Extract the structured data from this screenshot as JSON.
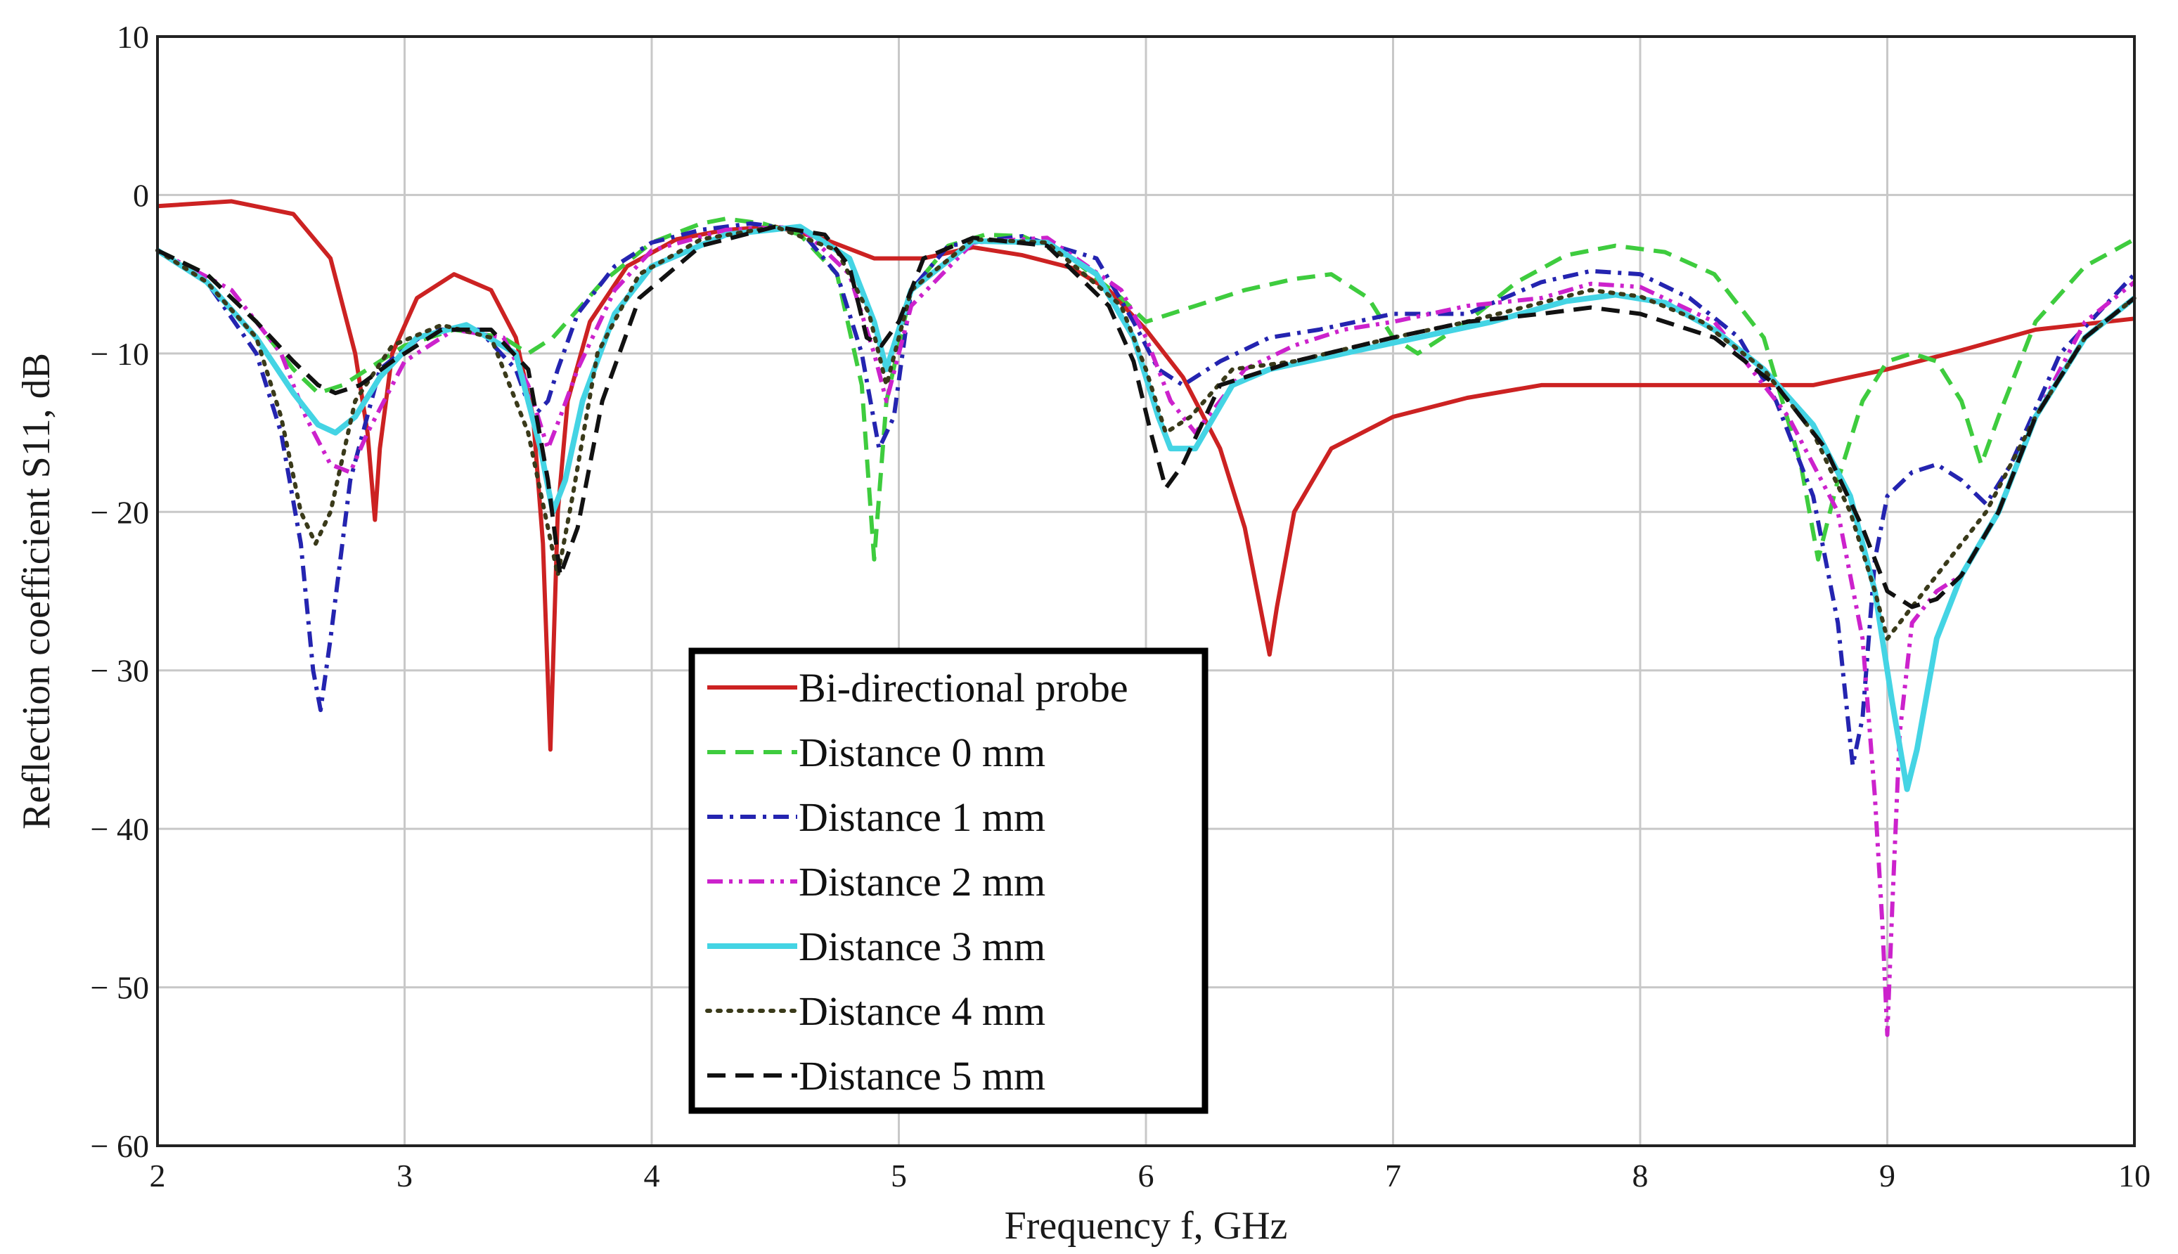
{
  "chart_data": {
    "type": "line",
    "xlabel": "Frequency f, GHz",
    "ylabel": "Reflection coefficient S11, dB",
    "xlim": [
      2,
      10
    ],
    "ylim": [
      -60,
      10
    ],
    "grid": true,
    "legend_position": "lower-center",
    "x_ticks": [
      2,
      3,
      4,
      5,
      6,
      7,
      8,
      9,
      10
    ],
    "x_tick_labels": [
      "2",
      "3",
      "4",
      "5",
      "6",
      "7",
      "8",
      "9",
      "10"
    ],
    "y_ticks": [
      10,
      0,
      -10,
      -20,
      -30,
      -40,
      -50,
      -60
    ],
    "y_tick_labels": [
      "10",
      "0",
      "− 10",
      "− 20",
      "− 30",
      "− 40",
      "− 50",
      "− 60"
    ],
    "series": [
      {
        "name": "Bi-directional probe",
        "color": "#cc2222",
        "style": "solid",
        "x": [
          2.0,
          2.3,
          2.55,
          2.7,
          2.8,
          2.85,
          2.88,
          2.9,
          2.95,
          3.05,
          3.2,
          3.35,
          3.45,
          3.52,
          3.56,
          3.59,
          3.6,
          3.62,
          3.66,
          3.75,
          3.9,
          4.1,
          4.3,
          4.5,
          4.7,
          4.9,
          5.1,
          5.3,
          5.5,
          5.7,
          5.85,
          6.0,
          6.15,
          6.3,
          6.4,
          6.45,
          6.5,
          6.53,
          6.6,
          6.75,
          7.0,
          7.3,
          7.6,
          8.0,
          8.4,
          8.7,
          9.0,
          9.3,
          9.6,
          10.0
        ],
        "y": [
          -0.7,
          -0.4,
          -1.2,
          -4,
          -10,
          -15,
          -20.5,
          -16,
          -10,
          -6.5,
          -5,
          -6,
          -9,
          -14,
          -22,
          -35,
          -30,
          -20,
          -13,
          -8,
          -4.5,
          -2.8,
          -2.2,
          -2.0,
          -2.8,
          -4.0,
          -4.0,
          -3.3,
          -3.8,
          -4.6,
          -6.0,
          -8.5,
          -11.5,
          -16,
          -21,
          -25,
          -29,
          -26,
          -20,
          -16,
          -14,
          -12.8,
          -12,
          -12.0,
          -12.0,
          -12.0,
          -11,
          -9.8,
          -8.5,
          -7.8
        ]
      },
      {
        "name": "Distance 0 mm",
        "color": "#3ecc3e",
        "style": "dashed",
        "x": [
          2.0,
          2.2,
          2.4,
          2.55,
          2.65,
          2.75,
          2.85,
          3.0,
          3.2,
          3.4,
          3.5,
          3.6,
          3.8,
          4.0,
          4.2,
          4.3,
          4.45,
          4.6,
          4.75,
          4.85,
          4.9,
          4.95,
          5.05,
          5.2,
          5.35,
          5.5,
          5.7,
          5.9,
          6.0,
          6.2,
          6.4,
          6.6,
          6.75,
          6.9,
          7.0,
          7.1,
          7.3,
          7.5,
          7.7,
          7.9,
          8.1,
          8.3,
          8.5,
          8.65,
          8.72,
          8.8,
          8.9,
          9.0,
          9.1,
          9.2,
          9.3,
          9.38,
          9.45,
          9.6,
          9.8,
          10.0
        ],
        "y": [
          -3.5,
          -5,
          -8,
          -11,
          -12.5,
          -12,
          -11,
          -9.5,
          -8.5,
          -9,
          -10,
          -9,
          -5.5,
          -3,
          -1.8,
          -1.5,
          -1.8,
          -2.5,
          -5,
          -12,
          -23,
          -13,
          -6,
          -3.2,
          -2.5,
          -2.6,
          -4,
          -6.5,
          -8,
          -7,
          -6,
          -5.3,
          -5.0,
          -6.5,
          -9,
          -10,
          -8,
          -5.5,
          -3.8,
          -3.2,
          -3.6,
          -5,
          -9,
          -17,
          -23,
          -18,
          -13,
          -10.5,
          -10,
          -10.5,
          -13,
          -17,
          -14,
          -8,
          -4.5,
          -2.8
        ]
      },
      {
        "name": "Distance 1 mm",
        "color": "#2424b0",
        "style": "dashdot",
        "x": [
          2.0,
          2.2,
          2.4,
          2.5,
          2.58,
          2.63,
          2.66,
          2.7,
          2.78,
          2.9,
          3.1,
          3.3,
          3.45,
          3.52,
          3.58,
          3.62,
          3.7,
          3.85,
          4.0,
          4.2,
          4.4,
          4.6,
          4.75,
          4.85,
          4.92,
          4.98,
          5.05,
          5.2,
          5.5,
          5.8,
          5.95,
          6.05,
          6.15,
          6.3,
          6.5,
          6.7,
          7.0,
          7.3,
          7.6,
          7.8,
          8.0,
          8.2,
          8.4,
          8.55,
          8.7,
          8.8,
          8.86,
          8.9,
          8.95,
          9.0,
          9.1,
          9.2,
          9.3,
          9.4,
          9.5,
          9.7,
          10.0
        ],
        "y": [
          -3.5,
          -5.5,
          -10,
          -15,
          -22,
          -30,
          -32.5,
          -28,
          -18,
          -11,
          -8.5,
          -8.5,
          -11,
          -14,
          -13,
          -11,
          -7.5,
          -4.5,
          -3,
          -2.2,
          -1.8,
          -2.2,
          -5,
          -10,
          -16,
          -14,
          -6,
          -3.2,
          -2.6,
          -4,
          -8,
          -11,
          -12,
          -10.5,
          -9,
          -8.5,
          -7.5,
          -7.5,
          -5.5,
          -4.8,
          -5.0,
          -6.5,
          -9,
          -13,
          -19,
          -27,
          -36,
          -33,
          -23,
          -19,
          -17.5,
          -17,
          -18,
          -19.5,
          -17,
          -10,
          -5
        ]
      },
      {
        "name": "Distance 2 mm",
        "color": "#cc22cc",
        "style": "dashdotdot",
        "x": [
          2.0,
          2.3,
          2.5,
          2.6,
          2.7,
          2.78,
          2.85,
          3.0,
          3.2,
          3.4,
          3.5,
          3.58,
          3.63,
          3.7,
          3.85,
          4.0,
          4.3,
          4.6,
          4.8,
          4.9,
          4.95,
          5.05,
          5.3,
          5.6,
          5.9,
          6.0,
          6.1,
          6.2,
          6.4,
          6.6,
          6.8,
          7.0,
          7.3,
          7.6,
          7.8,
          8.0,
          8.3,
          8.6,
          8.8,
          8.9,
          8.95,
          8.98,
          9.0,
          9.02,
          9.05,
          9.1,
          9.2,
          9.3,
          9.45,
          9.6,
          9.8,
          10.0
        ],
        "y": [
          -3.5,
          -6,
          -10,
          -14,
          -17,
          -17.5,
          -15,
          -10.5,
          -8.5,
          -9,
          -12,
          -16,
          -14,
          -11,
          -6,
          -3.5,
          -2.2,
          -2.0,
          -5,
          -10,
          -13,
          -7,
          -3,
          -2.7,
          -6,
          -9,
          -13,
          -15,
          -11,
          -9.5,
          -8.5,
          -8,
          -7,
          -6.5,
          -5.6,
          -5.8,
          -8,
          -14,
          -20,
          -28,
          -38,
          -46,
          -53,
          -45,
          -34,
          -27,
          -25,
          -24,
          -20,
          -14,
          -8,
          -5.5
        ]
      },
      {
        "name": "Distance 3 mm",
        "color": "#44d4e4",
        "style": "solid",
        "x": [
          2.0,
          2.2,
          2.4,
          2.55,
          2.65,
          2.72,
          2.8,
          2.9,
          3.05,
          3.25,
          3.45,
          3.55,
          3.6,
          3.65,
          3.72,
          3.85,
          4.0,
          4.3,
          4.6,
          4.8,
          4.9,
          4.95,
          5.05,
          5.3,
          5.6,
          5.8,
          5.95,
          6.05,
          6.1,
          6.2,
          6.35,
          6.5,
          6.8,
          7.1,
          7.4,
          7.7,
          7.9,
          8.1,
          8.3,
          8.5,
          8.7,
          8.85,
          8.95,
          9.02,
          9.08,
          9.12,
          9.2,
          9.3,
          9.45,
          9.6,
          9.8,
          10.0
        ],
        "y": [
          -3.5,
          -5.5,
          -9,
          -12.5,
          -14.5,
          -15,
          -14,
          -11.5,
          -9,
          -8.2,
          -10,
          -16,
          -20,
          -18,
          -13,
          -7.5,
          -4.5,
          -2.5,
          -2.0,
          -4,
          -8,
          -11,
          -6,
          -2.9,
          -3,
          -5,
          -9,
          -14,
          -16,
          -16,
          -12,
          -11,
          -10,
          -9,
          -8,
          -6.7,
          -6.3,
          -6.8,
          -8.5,
          -11,
          -14.5,
          -19,
          -25,
          -32,
          -37.5,
          -35,
          -28,
          -24,
          -20,
          -14,
          -9,
          -6.5
        ]
      },
      {
        "name": "Distance 4 mm",
        "color": "#3a3a1a",
        "style": "dotted",
        "x": [
          2.0,
          2.2,
          2.4,
          2.5,
          2.58,
          2.64,
          2.7,
          2.8,
          2.95,
          3.15,
          3.35,
          3.5,
          3.58,
          3.62,
          3.68,
          3.78,
          3.95,
          4.2,
          4.5,
          4.75,
          4.88,
          4.95,
          5.05,
          5.3,
          5.6,
          5.9,
          6.0,
          6.08,
          6.18,
          6.35,
          6.6,
          7.0,
          7.3,
          7.6,
          7.8,
          8.0,
          8.25,
          8.5,
          8.7,
          8.85,
          8.95,
          9.0,
          9.05,
          9.15,
          9.25,
          9.4,
          9.6,
          9.8,
          10.0
        ],
        "y": [
          -3.5,
          -5.5,
          -9,
          -14,
          -20,
          -22,
          -20,
          -13,
          -9.5,
          -8.2,
          -9,
          -15,
          -21,
          -24,
          -19,
          -10,
          -5,
          -2.8,
          -2,
          -3.5,
          -7.5,
          -12,
          -6,
          -2.8,
          -3,
          -7,
          -11,
          -15,
          -14,
          -11,
          -10.5,
          -9,
          -8,
          -6.8,
          -6.0,
          -6.4,
          -8,
          -11,
          -15,
          -20,
          -25,
          -28,
          -27,
          -25,
          -23,
          -20,
          -14,
          -9,
          -6.5
        ]
      },
      {
        "name": "Distance 5 mm",
        "color": "#111111",
        "style": "dashed",
        "x": [
          2.0,
          2.2,
          2.4,
          2.55,
          2.65,
          2.72,
          2.82,
          2.95,
          3.15,
          3.35,
          3.5,
          3.58,
          3.63,
          3.7,
          3.8,
          3.95,
          4.2,
          4.5,
          4.7,
          4.8,
          4.87,
          4.93,
          5.0,
          5.1,
          5.3,
          5.6,
          5.85,
          5.95,
          6.02,
          6.08,
          6.15,
          6.3,
          6.6,
          7.0,
          7.3,
          7.6,
          7.8,
          8.0,
          8.3,
          8.55,
          8.75,
          8.9,
          9.0,
          9.1,
          9.2,
          9.3,
          9.45,
          9.6,
          9.8,
          10.0
        ],
        "y": [
          -3.5,
          -5,
          -8,
          -10.5,
          -12,
          -12.5,
          -12,
          -10.5,
          -8.5,
          -8.5,
          -11,
          -18,
          -24,
          -21,
          -13,
          -6.5,
          -3.2,
          -2,
          -2.5,
          -4.5,
          -9,
          -9.5,
          -8,
          -4,
          -2.7,
          -3.2,
          -7,
          -10.5,
          -15,
          -18.5,
          -17,
          -12,
          -10.5,
          -9,
          -8,
          -7.5,
          -7.1,
          -7.5,
          -9,
          -12,
          -16,
          -21,
          -25,
          -26,
          -25.5,
          -24,
          -20,
          -14,
          -9,
          -6.5
        ]
      }
    ]
  }
}
